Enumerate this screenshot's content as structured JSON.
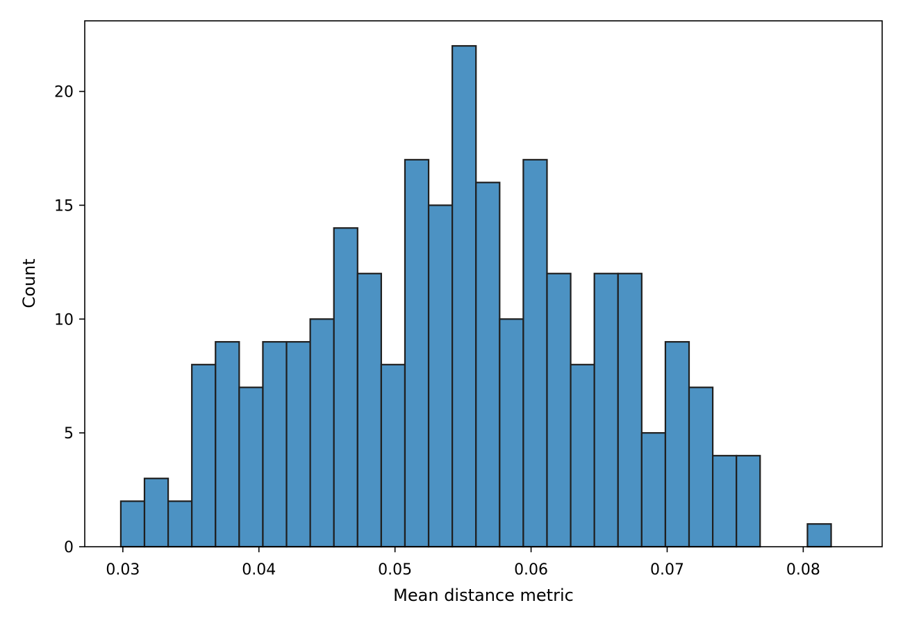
{
  "chart_data": {
    "type": "bar",
    "title": "",
    "xlabel": "Mean distance metric",
    "ylabel": "Count",
    "bin_start": 0.02985,
    "bin_width": 0.00174,
    "counts": [
      2,
      3,
      2,
      8,
      9,
      7,
      9,
      9,
      10,
      14,
      12,
      8,
      17,
      15,
      22,
      16,
      10,
      17,
      12,
      8,
      12,
      12,
      5,
      9,
      7,
      4,
      4,
      0,
      0,
      1
    ],
    "xlim": [
      0.0272,
      0.0858
    ],
    "ylim": [
      0,
      23.1
    ],
    "xticks": [
      0.03,
      0.04,
      0.05,
      0.06,
      0.07,
      0.08
    ],
    "xtick_labels": [
      "0.03",
      "0.04",
      "0.05",
      "0.06",
      "0.07",
      "0.08"
    ],
    "yticks": [
      0,
      5,
      10,
      15,
      20
    ],
    "ytick_labels": [
      "0",
      "5",
      "10",
      "15",
      "20"
    ],
    "bar_color": "#4c92c3",
    "edge_color": "#1f1f1f",
    "grid": false,
    "legend": "none"
  }
}
